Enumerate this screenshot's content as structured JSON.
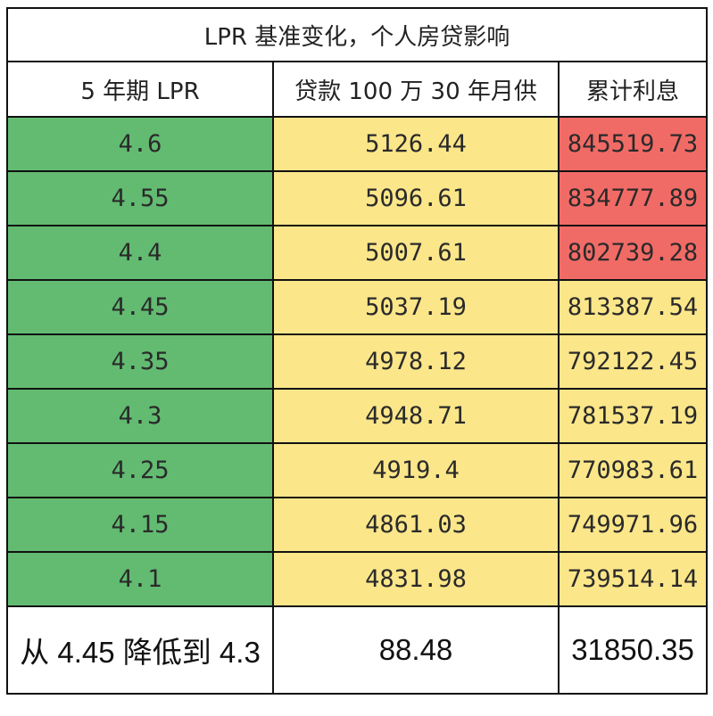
{
  "title": "LPR 基准变化，个人房贷影响",
  "headers": {
    "lpr": "5 年期 LPR",
    "payment": "贷款 100 万 30 年月供",
    "interest": "累计利息"
  },
  "rows": [
    {
      "lpr": "4.6",
      "payment": "5126.44",
      "interest": "845519.73",
      "highlight": true
    },
    {
      "lpr": "4.55",
      "payment": "5096.61",
      "interest": "834777.89",
      "highlight": true
    },
    {
      "lpr": "4.4",
      "payment": "5007.61",
      "interest": "802739.28",
      "highlight": true
    },
    {
      "lpr": "4.45",
      "payment": "5037.19",
      "interest": "813387.54",
      "highlight": false
    },
    {
      "lpr": "4.35",
      "payment": "4978.12",
      "interest": "792122.45",
      "highlight": false
    },
    {
      "lpr": "4.3",
      "payment": "4948.71",
      "interest": "781537.19",
      "highlight": false
    },
    {
      "lpr": "4.25",
      "payment": "4919.4",
      "interest": "770983.61",
      "highlight": false
    },
    {
      "lpr": "4.15",
      "payment": "4861.03",
      "interest": "749971.96",
      "highlight": false
    },
    {
      "lpr": "4.1",
      "payment": "4831.98",
      "interest": "739514.14",
      "highlight": false
    }
  ],
  "summary": {
    "label": "从 4.45 降低到 4.3",
    "payment_diff": "88.48",
    "interest_diff": "31850.35"
  },
  "colors": {
    "lpr_column": "#62bb71",
    "payment_column": "#fbe68a",
    "interest_default": "#fbe68a",
    "interest_highlight": "#f16b66"
  }
}
